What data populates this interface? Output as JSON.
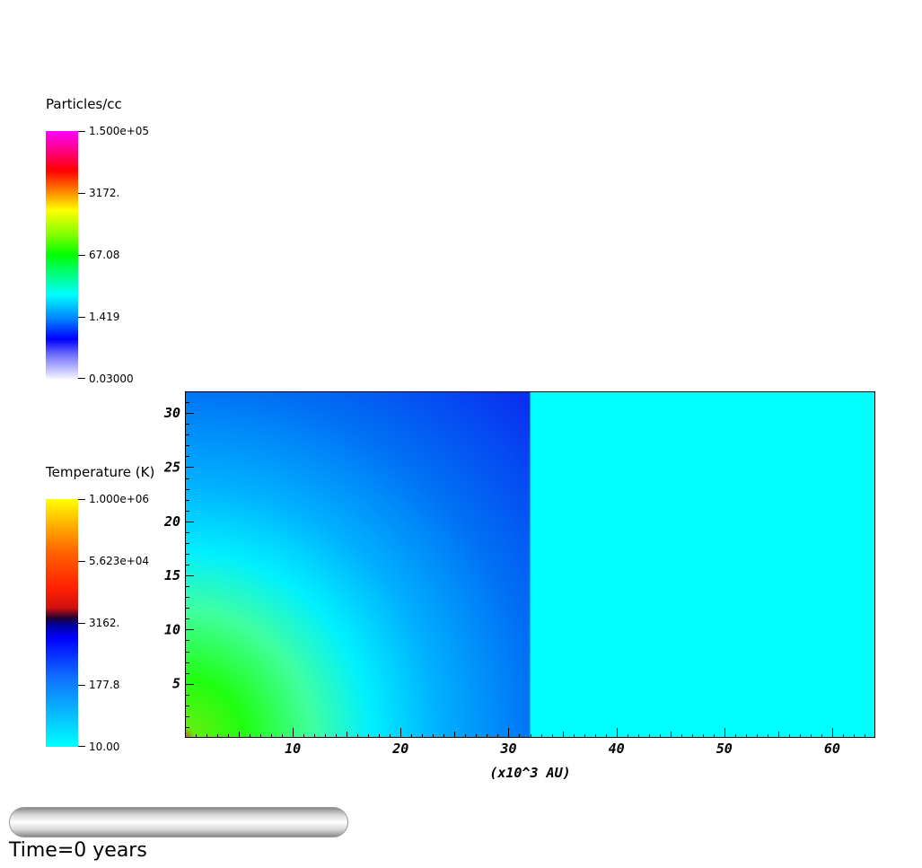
{
  "legends": {
    "density": {
      "title": "Particles/cc",
      "labels": [
        "1.500e+05",
        "3172.",
        "67.08",
        "1.419",
        "0.03000"
      ]
    },
    "temperature": {
      "title": "Temperature (K)",
      "labels": [
        "1.000e+06",
        "5.623e+04",
        "3162.",
        "177.8",
        "10.00"
      ]
    }
  },
  "chart_data": {
    "type": "heatmap",
    "xlabel": "(x10^3 AU)",
    "ylabel": "",
    "xlim": [
      0,
      64
    ],
    "ylim": [
      0,
      32
    ],
    "x_ticks": [
      10,
      20,
      30,
      40,
      50,
      60
    ],
    "y_ticks": [
      5,
      10,
      15,
      20,
      25,
      30
    ],
    "regions": [
      {
        "x_range": [
          0,
          32
        ],
        "y_range": [
          0,
          32
        ],
        "fill": "radial gradient: green near origin to cyan, fading to blue"
      },
      {
        "x_range": [
          32,
          64
        ],
        "y_range": [
          0,
          32
        ],
        "fill": "uniform cyan"
      }
    ],
    "colors": {
      "cyan": "#00ffff",
      "blue": "#0a2bf0",
      "green": "#20ff10"
    }
  },
  "time": {
    "label": "Time=0 years",
    "slider_position": 0
  }
}
